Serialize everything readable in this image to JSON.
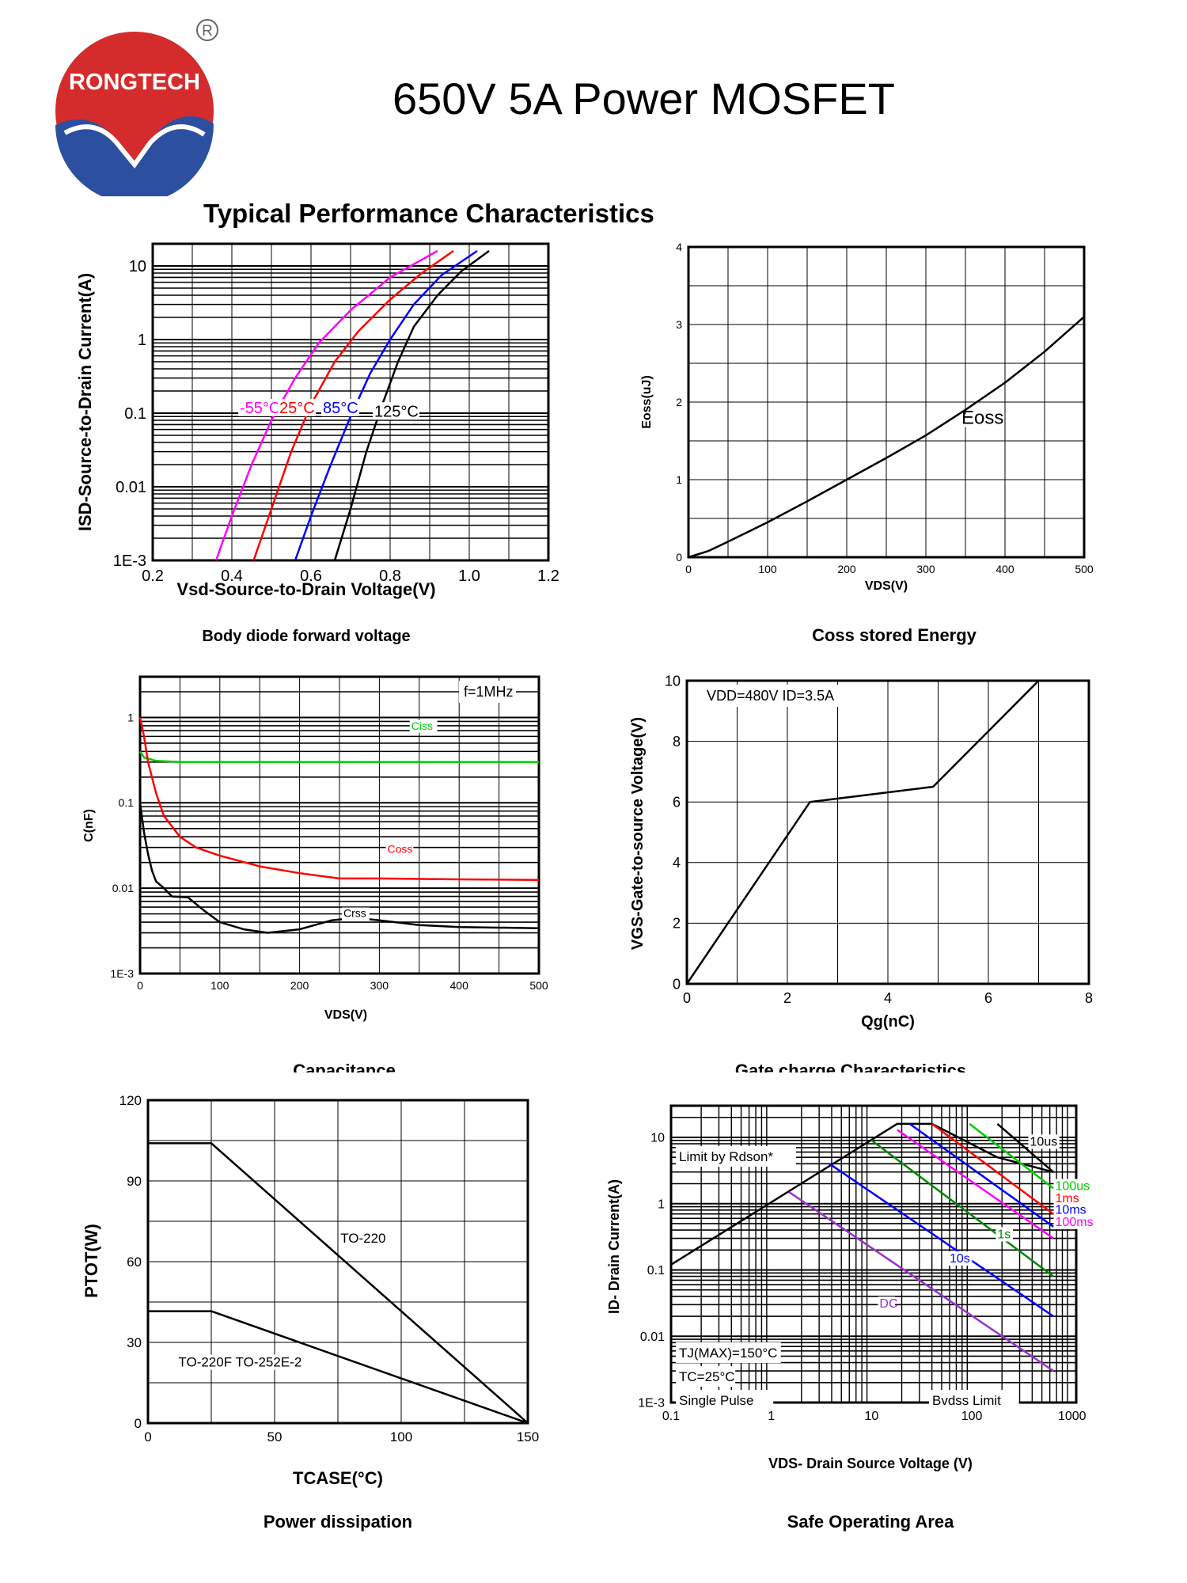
{
  "header": {
    "brand": "RONGTECH",
    "registered_mark": "R",
    "title": "650V 5A Power MOSFET",
    "section": "Typical Performance Characteristics"
  },
  "colors": {
    "logo_red": "#d42c2c",
    "logo_blue": "#2d4fa0",
    "magenta": "#ff00ff",
    "red": "#ff0000",
    "blue": "#0000ff",
    "green": "#00cc00",
    "purple": "#9932cc",
    "darkgreen": "#008800",
    "black": "#000000"
  },
  "chart_data": [
    {
      "id": "body-diode",
      "type": "line",
      "title": "Body diode forward voltage",
      "xlabel": "Vsd-Source-to-Drain Voltage(V)",
      "ylabel": "ISD-Source-to-Drain Current(A)",
      "xscale": "linear",
      "yscale": "log",
      "xlim": [
        0.2,
        1.2
      ],
      "ylim": [
        0.001,
        20
      ],
      "xticks": [
        0.2,
        0.4,
        0.6,
        0.8,
        1.0,
        1.2
      ],
      "xtick_labels": [
        "0.2",
        "0.4",
        "0.6",
        "0.8",
        "1.0",
        "1.2"
      ],
      "yticks": [
        10,
        1,
        0.1,
        0.01,
        0.001
      ],
      "ytick_labels": [
        "10",
        "1",
        "0.1",
        "0.01",
        "1E-3"
      ],
      "series": [
        {
          "name": "-55°C",
          "color": "magenta",
          "label_at": [
            0.42,
            0.1
          ],
          "x": [
            0.36,
            0.4,
            0.45,
            0.5,
            0.56,
            0.62,
            0.7,
            0.8,
            0.92
          ],
          "y": [
            0.001,
            0.004,
            0.02,
            0.08,
            0.3,
            0.9,
            2.5,
            7,
            16
          ]
        },
        {
          "name": "25°C",
          "color": "red",
          "label_at": [
            0.52,
            0.1
          ],
          "x": [
            0.455,
            0.5,
            0.55,
            0.6,
            0.66,
            0.72,
            0.8,
            0.88,
            0.96
          ],
          "y": [
            0.001,
            0.005,
            0.03,
            0.13,
            0.5,
            1.3,
            3.5,
            8,
            16
          ]
        },
        {
          "name": "85°C",
          "color": "blue",
          "label_at": [
            0.63,
            0.1
          ],
          "x": [
            0.56,
            0.6,
            0.65,
            0.7,
            0.75,
            0.8,
            0.86,
            0.93,
            1.02
          ],
          "y": [
            0.001,
            0.004,
            0.02,
            0.09,
            0.35,
            1.0,
            3.0,
            7.5,
            16
          ]
        },
        {
          "name": "125°C",
          "color": "black",
          "label_at": [
            0.76,
            0.09
          ],
          "x": [
            0.66,
            0.7,
            0.74,
            0.78,
            0.82,
            0.86,
            0.92,
            0.98,
            1.05
          ],
          "y": [
            0.001,
            0.005,
            0.03,
            0.13,
            0.5,
            1.5,
            4.0,
            8.5,
            16
          ]
        }
      ]
    },
    {
      "id": "eoss",
      "type": "line",
      "title": "Coss stored Energy",
      "xlabel": "VDS(V)",
      "ylabel": "Eoss(uJ)",
      "xscale": "linear",
      "yscale": "linear",
      "xlim": [
        0,
        500
      ],
      "ylim": [
        0,
        4
      ],
      "xticks": [
        0,
        100,
        200,
        300,
        400,
        500
      ],
      "xtick_labels": [
        "0",
        "100",
        "200",
        "300",
        "400",
        "500"
      ],
      "yticks": [
        0,
        1,
        2,
        3,
        4
      ],
      "ytick_labels": [
        "0",
        "1",
        "2",
        "3",
        "4"
      ],
      "series": [
        {
          "name": "Eoss",
          "color": "black",
          "label_at": [
            345,
            1.72
          ],
          "x": [
            0,
            25,
            50,
            100,
            150,
            200,
            250,
            300,
            350,
            400,
            450,
            500
          ],
          "y": [
            0,
            0.08,
            0.2,
            0.45,
            0.72,
            1.0,
            1.28,
            1.57,
            1.9,
            2.25,
            2.65,
            3.1
          ]
        }
      ]
    },
    {
      "id": "capacitance",
      "type": "line",
      "title": "Capacitance",
      "xlabel": "VDS(V)",
      "ylabel": "C(nF)",
      "xscale": "linear",
      "yscale": "log",
      "xlim": [
        0,
        500
      ],
      "ylim": [
        0.001,
        3
      ],
      "xticks": [
        0,
        100,
        200,
        300,
        400,
        500
      ],
      "xtick_labels": [
        "0",
        "100",
        "200",
        "300",
        "400",
        "500"
      ],
      "yticks": [
        1,
        0.1,
        0.01,
        0.001
      ],
      "ytick_labels": [
        "1",
        "0.1",
        "0.01",
        "1E-3"
      ],
      "annotation": "f=1MHz",
      "series": [
        {
          "name": "Ciss",
          "color": "green",
          "label_at": [
            340,
            0.72
          ],
          "x": [
            0,
            5,
            20,
            50,
            100,
            200,
            300,
            400,
            500
          ],
          "y": [
            0.4,
            0.34,
            0.31,
            0.3,
            0.3,
            0.3,
            0.3,
            0.3,
            0.3
          ]
        },
        {
          "name": "Coss",
          "color": "red",
          "label_at": [
            310,
            0.026
          ],
          "x": [
            0,
            5,
            10,
            20,
            30,
            50,
            70,
            100,
            150,
            200,
            250,
            300,
            400,
            500
          ],
          "y": [
            1.0,
            0.6,
            0.3,
            0.13,
            0.07,
            0.04,
            0.03,
            0.024,
            0.018,
            0.015,
            0.013,
            0.013,
            0.0127,
            0.0125
          ]
        },
        {
          "name": "Crss",
          "color": "black",
          "label_at": [
            255,
            0.0046
          ],
          "x": [
            0,
            5,
            10,
            15,
            20,
            30,
            40,
            60,
            80,
            100,
            130,
            160,
            200,
            240,
            270,
            300,
            350,
            400,
            500
          ],
          "y": [
            0.1,
            0.045,
            0.025,
            0.016,
            0.012,
            0.01,
            0.008,
            0.0078,
            0.0055,
            0.004,
            0.0033,
            0.003,
            0.0033,
            0.0042,
            0.0045,
            0.0042,
            0.0037,
            0.0035,
            0.0034
          ]
        }
      ]
    },
    {
      "id": "gate-charge",
      "type": "line",
      "title": "Gate charge Characteristics",
      "xlabel": "Qg(nC)",
      "ylabel": "VGS-Gate-to-source Voltage(V)",
      "xscale": "linear",
      "yscale": "linear",
      "xlim": [
        0,
        8
      ],
      "ylim": [
        0,
        10
      ],
      "xticks": [
        0,
        2,
        4,
        6,
        8
      ],
      "xtick_labels": [
        "0",
        "2",
        "4",
        "6",
        "8"
      ],
      "yticks": [
        0,
        2,
        4,
        6,
        8,
        10
      ],
      "ytick_labels": [
        "0",
        "2",
        "4",
        "6",
        "8",
        "10"
      ],
      "annotation": "VDD=480V ID=3.5A",
      "series": [
        {
          "name": "VGS",
          "color": "black",
          "x": [
            0,
            2.45,
            4.9,
            7.0
          ],
          "y": [
            0,
            6.0,
            6.5,
            10.0
          ]
        }
      ]
    },
    {
      "id": "power-dissipation",
      "type": "line",
      "title": "Power dissipation",
      "xlabel": "TCASE(°C)",
      "ylabel": "PTOT(W)",
      "xscale": "linear",
      "yscale": "linear",
      "xlim": [
        0,
        150
      ],
      "ylim": [
        0,
        120
      ],
      "xticks": [
        0,
        50,
        100,
        150
      ],
      "xtick_labels": [
        "0",
        "50",
        "100",
        "150"
      ],
      "yticks": [
        0,
        30,
        60,
        90,
        120
      ],
      "ytick_labels": [
        "0",
        "30",
        "60",
        "90",
        "120"
      ],
      "series": [
        {
          "name": "TO-220",
          "color": "black",
          "label_at": [
            76,
            67
          ],
          "x": [
            0,
            25,
            150
          ],
          "y": [
            104,
            104,
            0
          ]
        },
        {
          "name": "TO-220F TO-252E-2",
          "color": "black",
          "label_at": [
            12,
            21
          ],
          "x": [
            0,
            25,
            150
          ],
          "y": [
            41.6,
            41.6,
            0
          ]
        }
      ]
    },
    {
      "id": "soa",
      "type": "line",
      "title": "Safe Operating Area",
      "xlabel": "VDS- Drain Source Voltage (V)",
      "ylabel": "ID- Drain Current(A)",
      "xscale": "log",
      "yscale": "log",
      "xlim": [
        0.1,
        1100
      ],
      "ylim": [
        0.001,
        30
      ],
      "xticks": [
        0.1,
        1,
        10,
        100,
        1000
      ],
      "xtick_labels": [
        "0.1",
        "1",
        "10",
        "100",
        "1000"
      ],
      "yticks": [
        10,
        1,
        0.1,
        0.01,
        0.001
      ],
      "ytick_labels": [
        "10",
        "1",
        "0.1",
        "0.01",
        "1E-3"
      ],
      "notes": [
        "Limit by Rdson*",
        "TJ(MAX)=150°C",
        "TC=25°C",
        "Single Pulse",
        "Bvdss Limit"
      ],
      "series": [
        {
          "name": "Limit by Rdson*",
          "color": "black",
          "x": [
            0.1,
            18,
            40,
            180,
            650
          ],
          "y": [
            0.12,
            16,
            16,
            5,
            3
          ]
        },
        {
          "name": "10us",
          "color": "black",
          "label_at": [
            380,
            7.5
          ],
          "x": [
            180,
            650
          ],
          "y": [
            16,
            3
          ]
        },
        {
          "name": "100us",
          "color": "green",
          "label_at": [
            680,
            1.6
          ],
          "x": [
            95,
            650
          ],
          "y": [
            16,
            1.7
          ]
        },
        {
          "name": "1ms",
          "color": "red",
          "label_at": [
            680,
            1.05
          ],
          "x": [
            40,
            650
          ],
          "y": [
            16,
            0.7
          ]
        },
        {
          "name": "10ms",
          "color": "blue",
          "label_at": [
            680,
            0.7
          ],
          "x": [
            24,
            650
          ],
          "y": [
            16,
            0.45
          ]
        },
        {
          "name": "100ms",
          "color": "magenta",
          "label_at": [
            680,
            0.46
          ],
          "x": [
            18,
            650
          ],
          "y": [
            13,
            0.3
          ]
        },
        {
          "name": "1s",
          "color": "darkgreen",
          "label_at": [
            180,
            0.3
          ],
          "x": [
            10,
            650
          ],
          "y": [
            9,
            0.08
          ]
        },
        {
          "name": "10s",
          "color": "blue",
          "label_at": [
            60,
            0.13
          ],
          "x": [
            3.8,
            650
          ],
          "y": [
            4,
            0.02
          ]
        },
        {
          "name": "DC",
          "color": "purple",
          "label_at": [
            12,
            0.027
          ],
          "x": [
            1.5,
            650
          ],
          "y": [
            1.5,
            0.003
          ]
        }
      ]
    }
  ]
}
